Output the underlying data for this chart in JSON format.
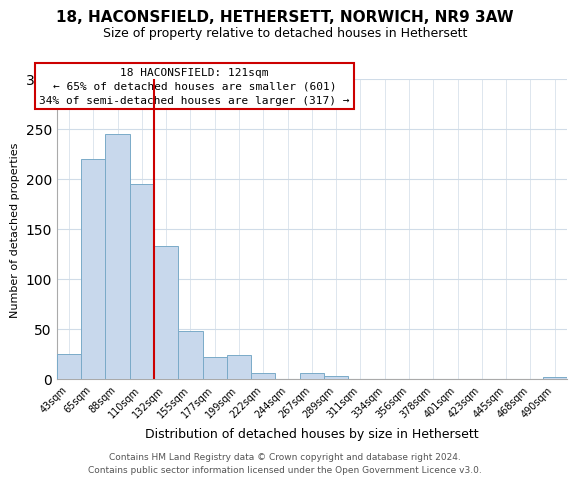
{
  "title_line1": "18, HACONSFIELD, HETHERSETT, NORWICH, NR9 3AW",
  "title_line2": "Size of property relative to detached houses in Hethersett",
  "xlabel": "Distribution of detached houses by size in Hethersett",
  "ylabel": "Number of detached properties",
  "bin_labels": [
    "43sqm",
    "65sqm",
    "88sqm",
    "110sqm",
    "132sqm",
    "155sqm",
    "177sqm",
    "199sqm",
    "222sqm",
    "244sqm",
    "267sqm",
    "289sqm",
    "311sqm",
    "334sqm",
    "356sqm",
    "378sqm",
    "401sqm",
    "423sqm",
    "445sqm",
    "468sqm",
    "490sqm"
  ],
  "bar_values": [
    25,
    220,
    245,
    195,
    133,
    48,
    22,
    24,
    6,
    0,
    6,
    3,
    0,
    0,
    0,
    0,
    0,
    0,
    0,
    0,
    2
  ],
  "bar_color": "#c8d8ec",
  "bar_edge_color": "#7aaac8",
  "reference_line_color": "#cc0000",
  "ylim": [
    0,
    300
  ],
  "yticks": [
    0,
    50,
    100,
    150,
    200,
    250,
    300
  ],
  "annotation_title": "18 HACONSFIELD: 121sqm",
  "annotation_line1": "← 65% of detached houses are smaller (601)",
  "annotation_line2": "34% of semi-detached houses are larger (317) →",
  "annotation_box_color": "#ffffff",
  "annotation_box_edge_color": "#cc0000",
  "footer_line1": "Contains HM Land Registry data © Crown copyright and database right 2024.",
  "footer_line2": "Contains public sector information licensed under the Open Government Licence v3.0.",
  "grid_color": "#d0dce8",
  "title_fontsize": 11,
  "subtitle_fontsize": 9,
  "ylabel_fontsize": 8,
  "xlabel_fontsize": 9,
  "tick_fontsize": 7,
  "annotation_fontsize": 8,
  "footer_fontsize": 6.5
}
